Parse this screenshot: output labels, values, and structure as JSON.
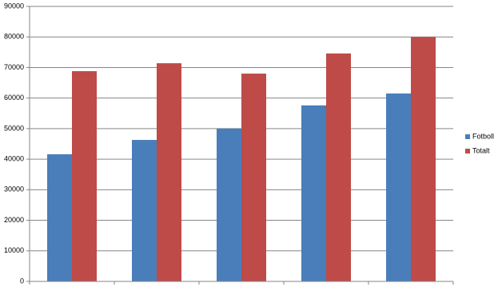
{
  "chart_data": {
    "type": "bar",
    "categories": [
      null,
      null,
      null,
      null,
      null
    ],
    "series": [
      {
        "name": "Fotboll",
        "color": "#4a7ebb",
        "values": [
          41600,
          46300,
          50000,
          57600,
          61500
        ]
      },
      {
        "name": "Totalt",
        "color": "#be4b48",
        "values": [
          68800,
          71400,
          68000,
          74600,
          80000
        ]
      }
    ],
    "ylim": [
      0,
      90000
    ],
    "yticks": [
      0,
      10000,
      20000,
      30000,
      40000,
      50000,
      60000,
      70000,
      80000,
      90000
    ],
    "grid": true,
    "legend": "right"
  }
}
